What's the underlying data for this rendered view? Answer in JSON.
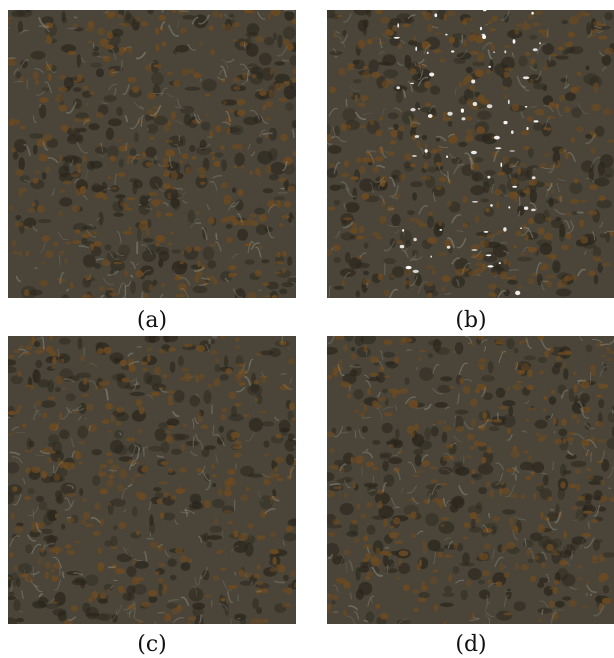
{
  "figure": {
    "panels": [
      {
        "id": "a",
        "caption": "(a)",
        "seed": 11,
        "white_specks": false
      },
      {
        "id": "b",
        "caption": "(b)",
        "seed": 29,
        "white_specks": true
      },
      {
        "id": "c",
        "caption": "(c)",
        "seed": 47,
        "white_specks": false
      },
      {
        "id": "d",
        "caption": "(d)",
        "seed": 83,
        "white_specks": false
      }
    ],
    "colors": {
      "base": "#4a4538",
      "dark": "#2a251c",
      "brown": "#6b4a22",
      "light": "#8a8a80",
      "speck": "#ffffff"
    }
  }
}
